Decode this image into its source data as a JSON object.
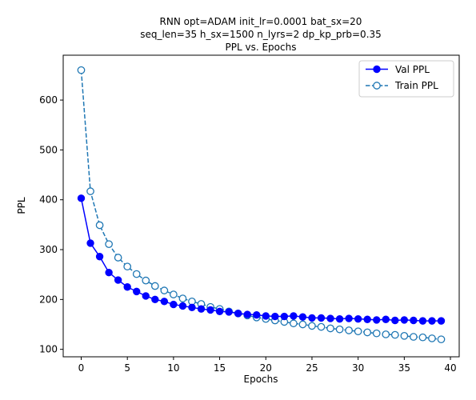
{
  "chart_data": {
    "type": "line",
    "title_lines": [
      "RNN opt=ADAM init_lr=0.0001 bat_sx=20",
      "seq_len=35 h_sx=1500 n_lyrs=2 dp_kp_prb=0.35",
      "PPL vs. Epochs"
    ],
    "xlabel": "Epochs",
    "ylabel": "PPL",
    "xlim": [
      -1.95,
      40.95
    ],
    "ylim": [
      85,
      690
    ],
    "xticks": [
      0,
      5,
      10,
      15,
      20,
      25,
      30,
      35,
      40
    ],
    "yticks": [
      100,
      200,
      300,
      400,
      500,
      600
    ],
    "grid": false,
    "legend_position": "top-right",
    "x": [
      0,
      1,
      2,
      3,
      4,
      5,
      6,
      7,
      8,
      9,
      10,
      11,
      12,
      13,
      14,
      15,
      16,
      17,
      18,
      19,
      20,
      21,
      22,
      23,
      24,
      25,
      26,
      27,
      28,
      29,
      30,
      31,
      32,
      33,
      34,
      35,
      36,
      37,
      38,
      39
    ],
    "series": [
      {
        "name": "Val PPL",
        "color": "#0000ff",
        "line_style": "solid",
        "marker": "filled-circle",
        "values": [
          403,
          313,
          286,
          254,
          239,
          225,
          216,
          207,
          200,
          196,
          190,
          187,
          184,
          181,
          179,
          176,
          175,
          172,
          170,
          169,
          167,
          166,
          166,
          167,
          165,
          163,
          163,
          162,
          161,
          162,
          161,
          160,
          159,
          160,
          158,
          159,
          158,
          157,
          157,
          157
        ]
      },
      {
        "name": "Train PPL",
        "color": "#1f77b4",
        "line_style": "dashed",
        "marker": "hollow-circle",
        "values": [
          660,
          417,
          349,
          311,
          284,
          266,
          251,
          238,
          227,
          218,
          210,
          202,
          196,
          191,
          185,
          181,
          176,
          172,
          168,
          164,
          161,
          158,
          155,
          152,
          150,
          147,
          145,
          142,
          140,
          138,
          136,
          134,
          132,
          130,
          129,
          127,
          125,
          124,
          122,
          120
        ]
      }
    ]
  }
}
